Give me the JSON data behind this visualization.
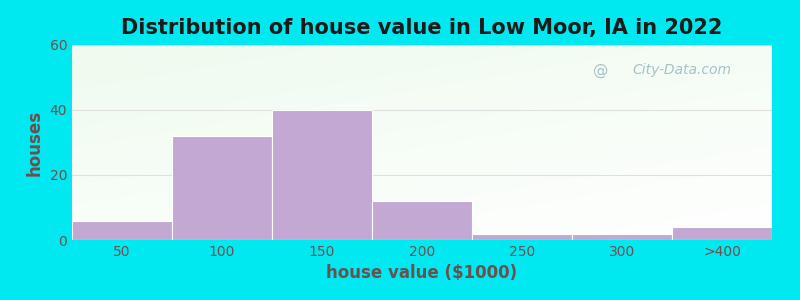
{
  "title": "Distribution of house value in Low Moor, IA in 2022",
  "xlabel": "house value ($1000)",
  "ylabel": "houses",
  "bar_labels": [
    "50",
    "100",
    "150",
    "200",
    "250",
    "300",
    ">400"
  ],
  "bar_heights": [
    6,
    32,
    40,
    12,
    2,
    2,
    4
  ],
  "bar_color": "#c4a8d4",
  "ylim": [
    0,
    60
  ],
  "yticks": [
    0,
    20,
    40,
    60
  ],
  "background_outer": "#00e8f0",
  "title_fontsize": 15,
  "axis_label_fontsize": 12,
  "tick_fontsize": 10,
  "watermark_text": "City-Data.com",
  "watermark_color": "#9ab8c0",
  "bar_width": 1.0,
  "tick_color": "#6b5050",
  "label_color": "#6b5050",
  "title_color": "#1a1a1a",
  "grid_color": "#e0e0e0"
}
